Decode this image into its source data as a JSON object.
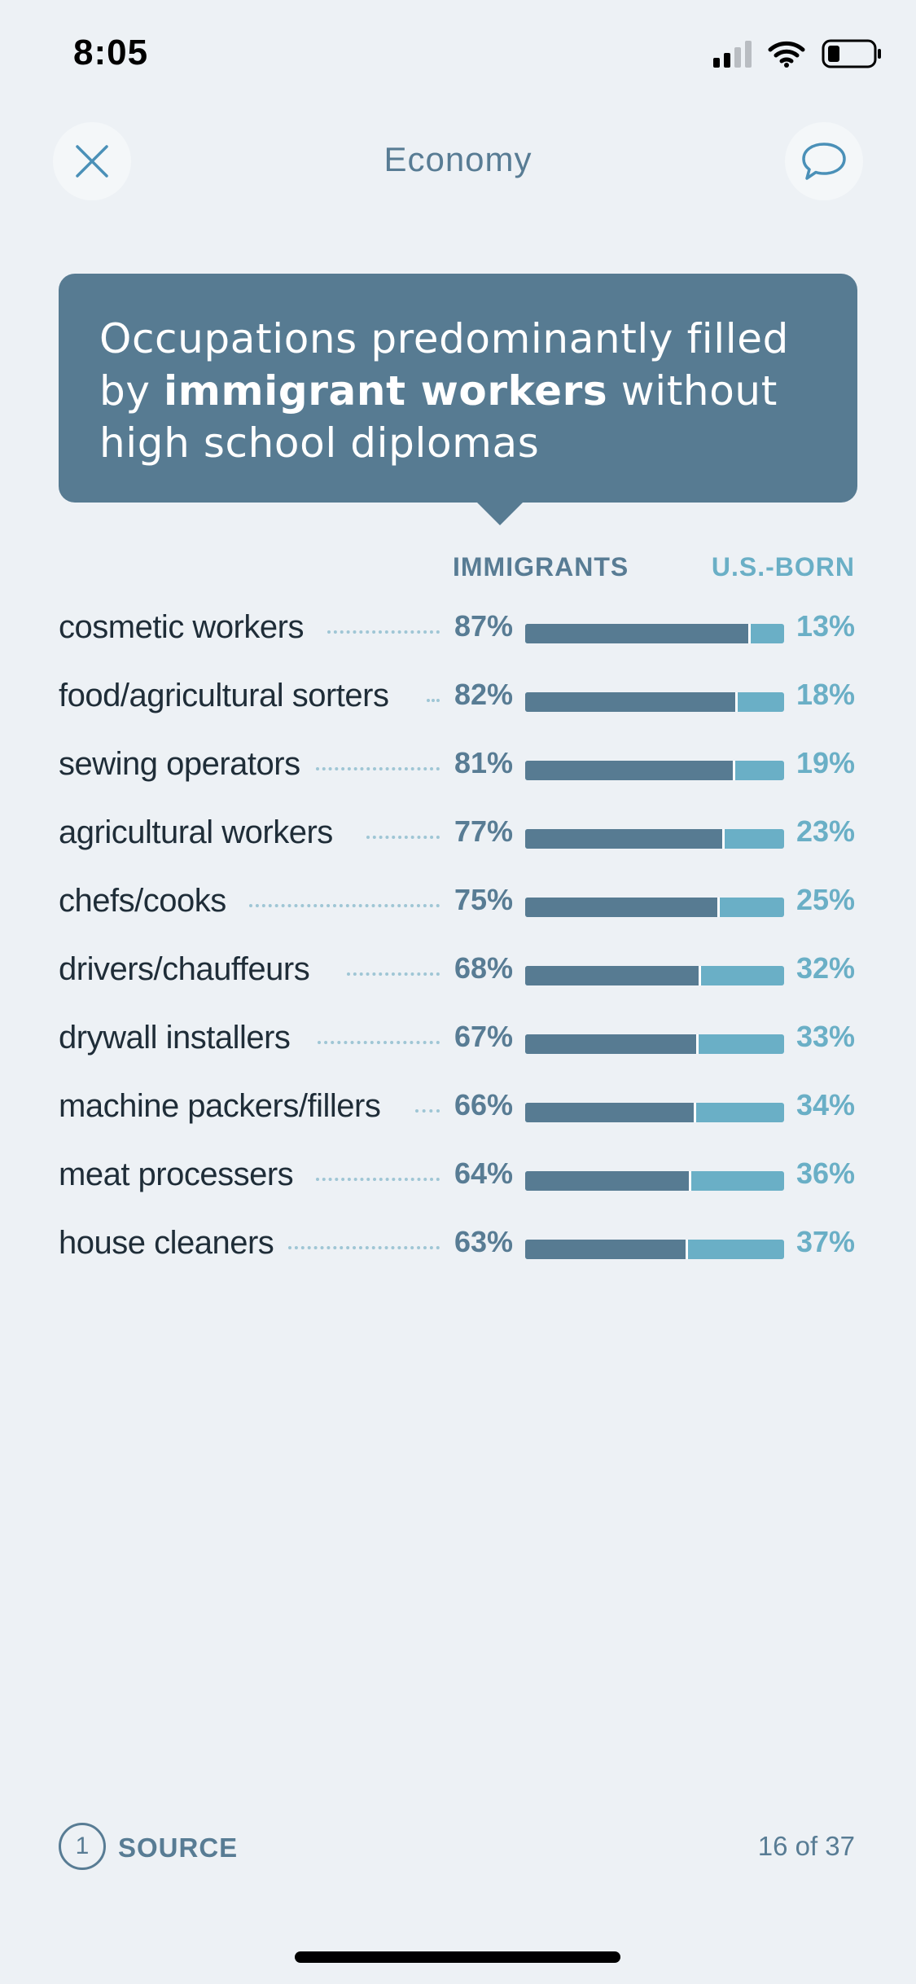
{
  "status_bar": {
    "time": "8:05"
  },
  "nav": {
    "title": "Economy"
  },
  "card": {
    "title_part1": "Occupations predominantly filled by ",
    "title_bold": "immigrant workers",
    "title_part2": " without high school diplomas"
  },
  "chart_data": {
    "type": "bar",
    "title": "Occupations predominantly filled by immigrant workers without high school diplomas",
    "series": [
      {
        "name": "IMMIGRANTS",
        "values": [
          87,
          82,
          81,
          77,
          75,
          68,
          67,
          66,
          64,
          63
        ]
      },
      {
        "name": "U.S.-BORN",
        "values": [
          13,
          18,
          19,
          23,
          25,
          32,
          33,
          34,
          36,
          37
        ]
      }
    ],
    "categories": [
      "cosmetic workers",
      "food/agricultural sorters",
      "sewing operators",
      "agricultural workers",
      "chefs/cooks",
      "drivers/chauffeurs",
      "drywall installers",
      "machine packers/fillers",
      "meat processers",
      "house cleaners"
    ],
    "rows": [
      {
        "label": "cosmetic workers",
        "immigrants": "87%",
        "us_born": "13%",
        "imm_value": 87
      },
      {
        "label": "food/agricultural sorters",
        "immigrants": "82%",
        "us_born": "18%",
        "imm_value": 82
      },
      {
        "label": "sewing operators",
        "immigrants": "81%",
        "us_born": "19%",
        "imm_value": 81
      },
      {
        "label": "agricultural workers",
        "immigrants": "77%",
        "us_born": "23%",
        "imm_value": 77
      },
      {
        "label": "chefs/cooks",
        "immigrants": "75%",
        "us_born": "25%",
        "imm_value": 75
      },
      {
        "label": "drivers/chauffeurs",
        "immigrants": "68%",
        "us_born": "32%",
        "imm_value": 68
      },
      {
        "label": "drywall installers",
        "immigrants": "67%",
        "us_born": "33%",
        "imm_value": 67
      },
      {
        "label": "machine packers/fillers",
        "immigrants": "66%",
        "us_born": "34%",
        "imm_value": 66
      },
      {
        "label": "meat processers",
        "immigrants": "64%",
        "us_born": "36%",
        "imm_value": 64
      },
      {
        "label": "house cleaners",
        "immigrants": "63%",
        "us_born": "37%",
        "imm_value": 63
      }
    ],
    "colors": {
      "immigrants": "#577b92",
      "us_born": "#6aafc6"
    }
  },
  "headers": {
    "immigrants": "IMMIGRANTS",
    "us_born": "U.S.-BORN"
  },
  "footer": {
    "source_count": "1",
    "source_label": "SOURCE",
    "page_count": "16 of 37"
  }
}
